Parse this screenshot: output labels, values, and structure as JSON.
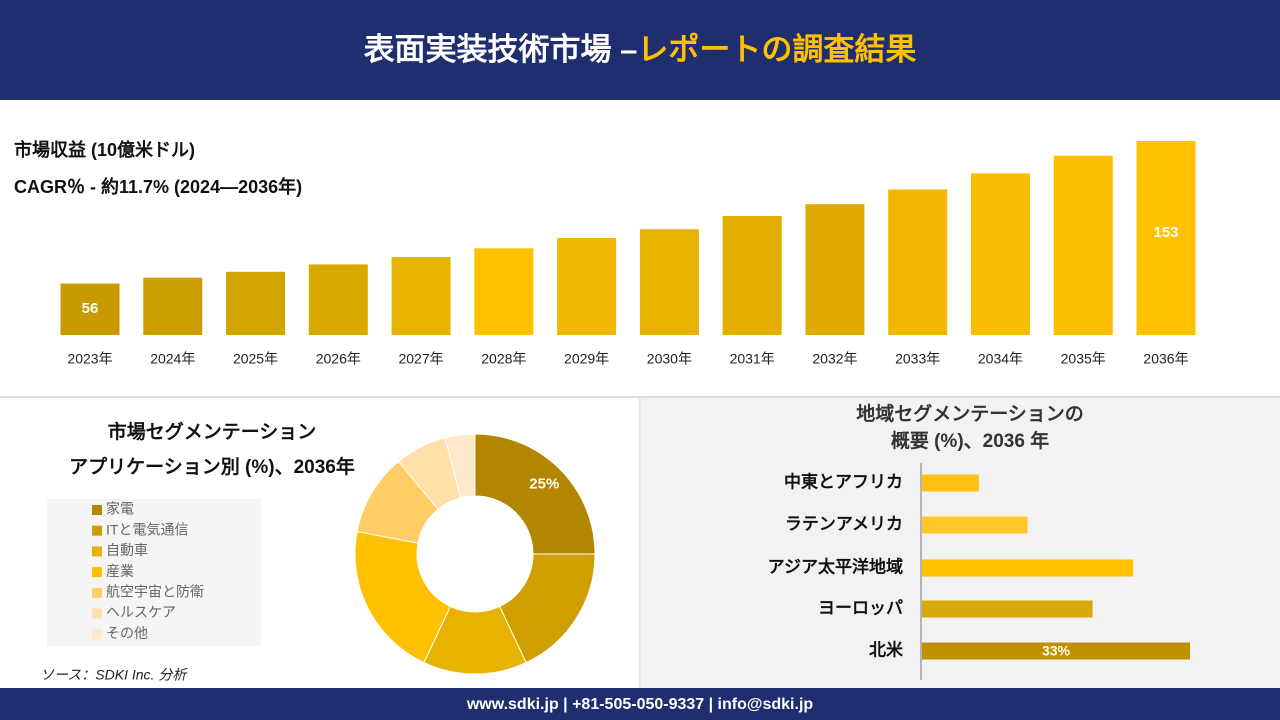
{
  "header": {
    "title": "表面実装技術市場 –",
    "title_highlight": "レポートの調査結果"
  },
  "chart_data": [
    {
      "type": "bar",
      "title": "市場収益 (10億米ドル)",
      "subtitle": "CAGR％ - 約11.7% (2024―2036年)",
      "categories": [
        "2023年",
        "2024年",
        "2025年",
        "2026年",
        "2027年",
        "2028年",
        "2029年",
        "2030年",
        "2031年",
        "2032年",
        "2033年",
        "2034年",
        "2035年",
        "2036年"
      ],
      "values": [
        56,
        60,
        64,
        69,
        74,
        80,
        87,
        93,
        102,
        110,
        120,
        131,
        143,
        153
      ],
      "show_value_label": [
        true,
        false,
        false,
        false,
        false,
        false,
        false,
        false,
        false,
        false,
        false,
        false,
        false,
        true
      ],
      "colors": [
        "#c89a00",
        "#cc9f00",
        "#d2a400",
        "#d9a900",
        "#e6b300",
        "#ffc000",
        "#f0b800",
        "#e8b200",
        "#e3ae00",
        "#dfab00",
        "#f2b800",
        "#f8bc00",
        "#fcbf00",
        "#ffc000"
      ],
      "ylim": [
        21,
        153
      ]
    },
    {
      "type": "donut",
      "title": "市場セグメンテーション",
      "subtitle": "アプリケーション別 (%)、2036年",
      "categories": [
        "家電",
        "ITと電気通信",
        "自動車",
        "産業",
        "航空宇宙と防衛",
        "ヘルスケア",
        "その他"
      ],
      "values": [
        25,
        18,
        14,
        21,
        11,
        7,
        4
      ],
      "value_labels": [
        "25%",
        null,
        null,
        null,
        null,
        null,
        null
      ],
      "colors": [
        "#b38600",
        "#d19e00",
        "#e8b200",
        "#ffc000",
        "#ffcc66",
        "#ffe0a8",
        "#ffe9cc"
      ]
    },
    {
      "type": "hbar",
      "title": "地域セグメンテーションの",
      "subtitle": "概要 (%)、2036 年",
      "categories": [
        "中東とアフリカ",
        "ラテンアメリカ",
        "アジア太平洋地域",
        "ヨーロッパ",
        "北米"
      ],
      "values": [
        7,
        13,
        26,
        21,
        33
      ],
      "value_labels": [
        null,
        null,
        null,
        null,
        "33%"
      ],
      "colors": [
        "#fdc116",
        "#ffc72c",
        "#ffc000",
        "#d9a80a",
        "#bf9000"
      ]
    }
  ],
  "source": "ソース：SDKI Inc. 分析",
  "footer": "www.sdki.jp | +81-505-050-9337 | info@sdki.jp"
}
